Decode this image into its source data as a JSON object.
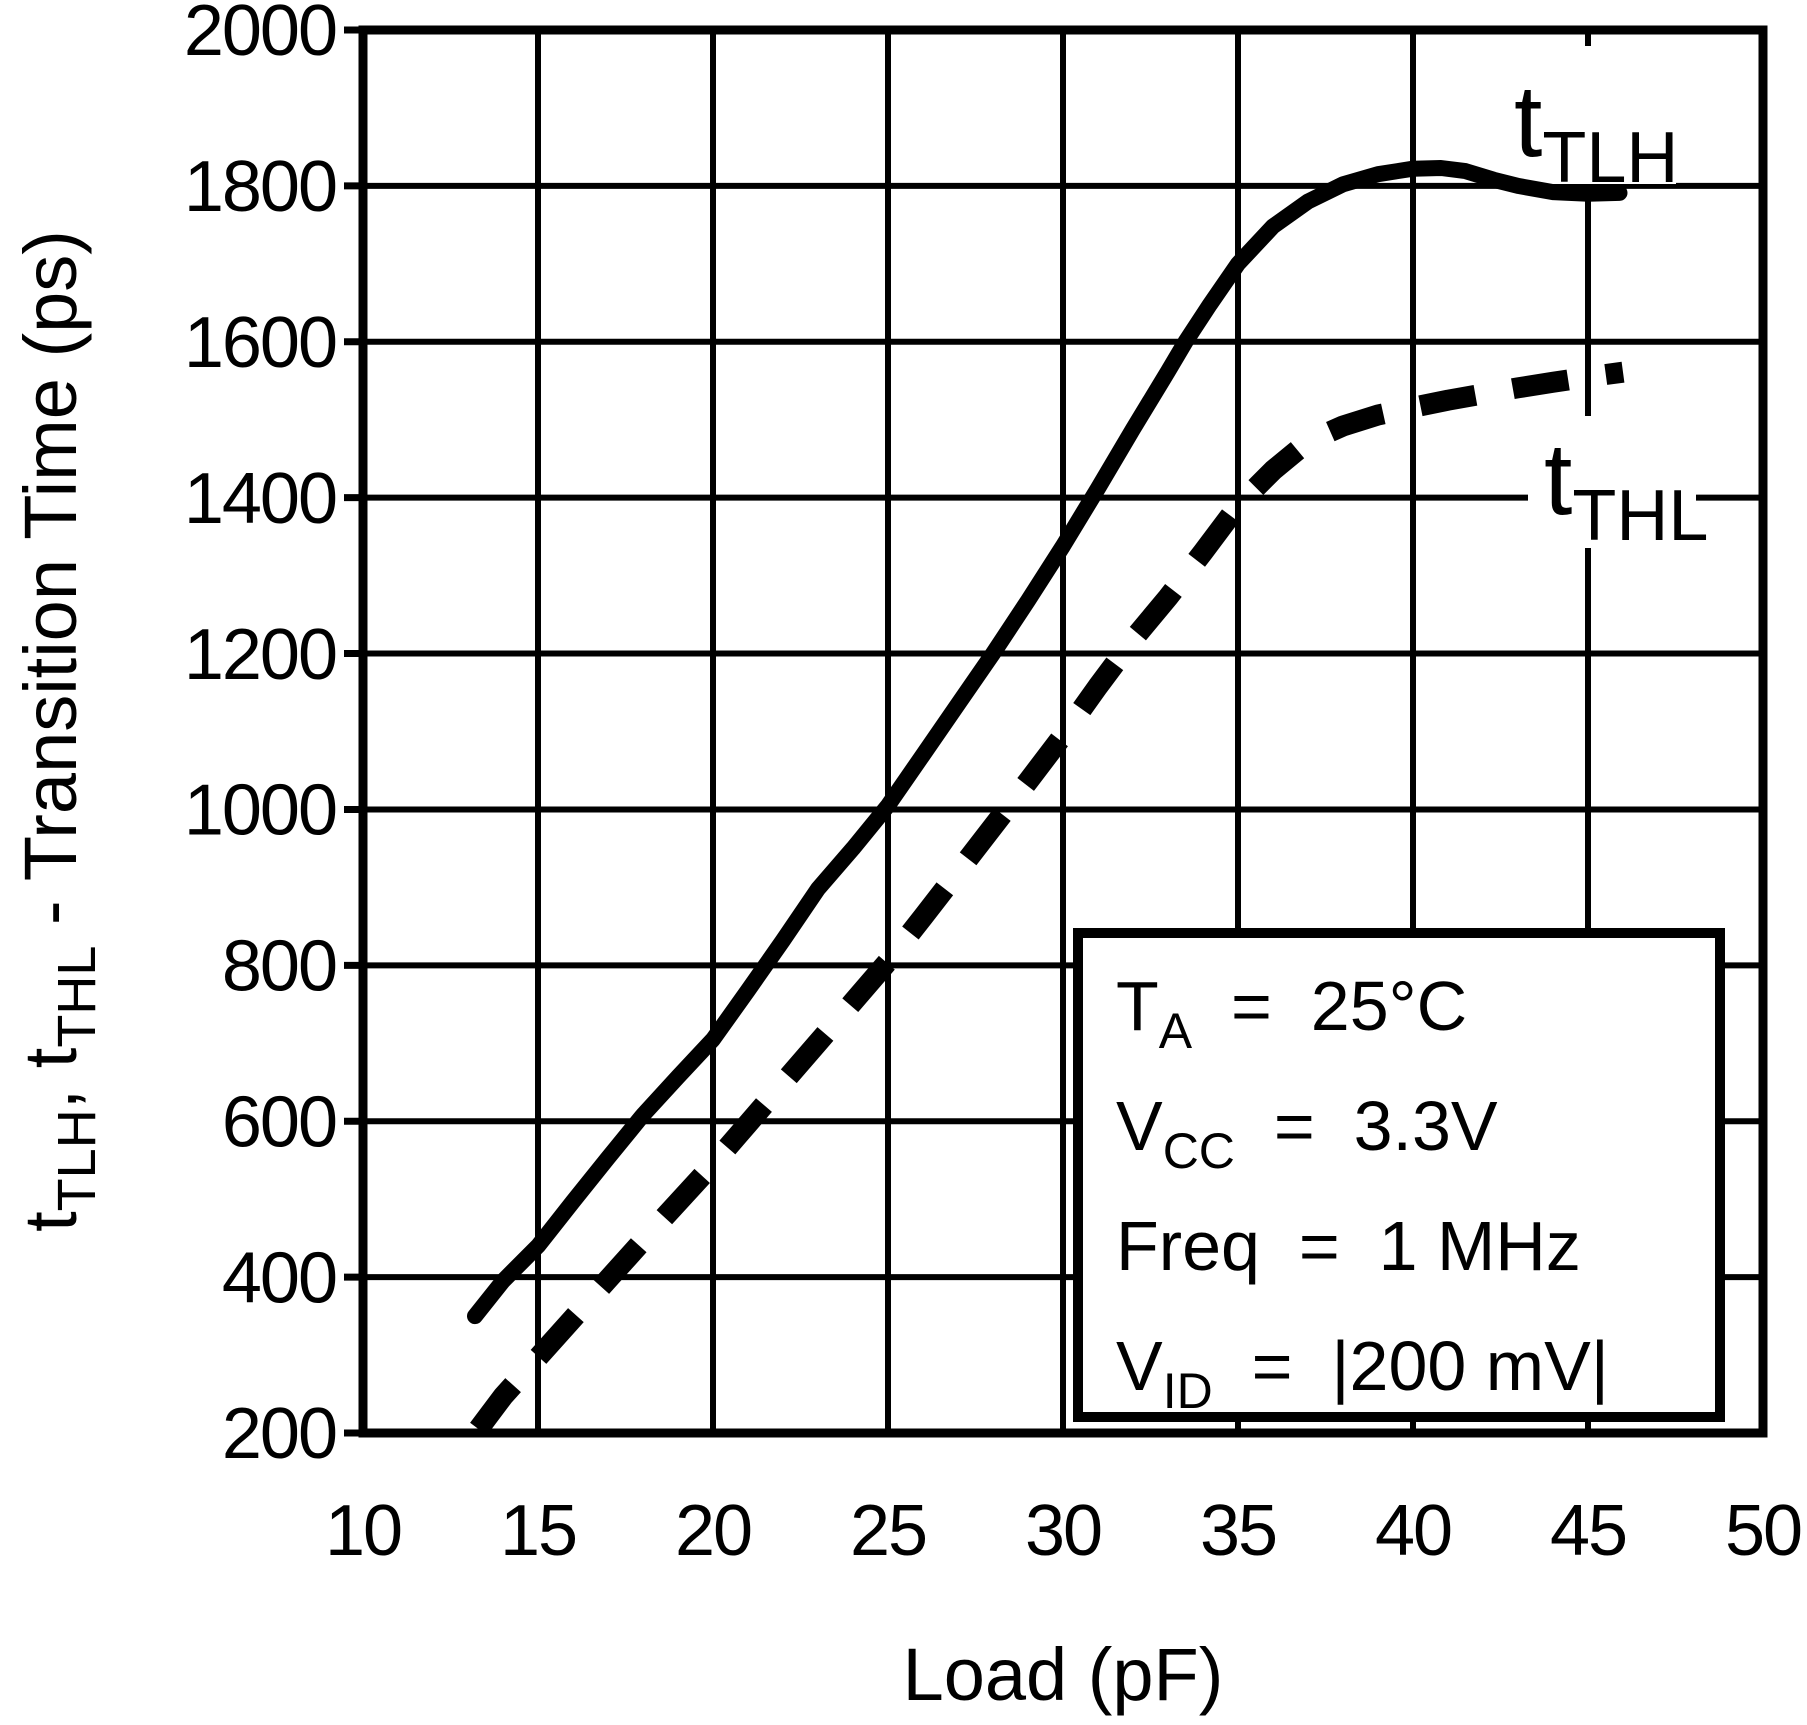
{
  "colors": {
    "ink": "#000000",
    "background": "#ffffff"
  },
  "chart_data": {
    "type": "line",
    "title": "",
    "xlabel": "Load (pF)",
    "ylabel_rich": [
      [
        "t",
        0
      ],
      [
        "TLH",
        1
      ],
      [
        ", ",
        0
      ],
      [
        "t",
        0
      ],
      [
        "THL",
        1
      ],
      [
        " - Transition Time (ps)",
        0
      ]
    ],
    "xlim": [
      10,
      50
    ],
    "xstep": 5,
    "ylim": [
      200,
      2000
    ],
    "ystep": 200,
    "x_tick_labels": [
      "10",
      "15",
      "20",
      "25",
      "30",
      "35",
      "40",
      "45",
      "50"
    ],
    "y_tick_labels": [
      "200",
      "400",
      "600",
      "800",
      "1000",
      "1200",
      "1400",
      "1600",
      "1800",
      "2000"
    ],
    "grid": true,
    "legend_position": "on-curve",
    "series": [
      {
        "name": "t_TLH",
        "style": "solid",
        "label_rich": [
          [
            "t",
            0
          ],
          [
            "TLH",
            1
          ]
        ],
        "points": [
          [
            13.2,
            350
          ],
          [
            14,
            395
          ],
          [
            15,
            440
          ],
          [
            16,
            497
          ],
          [
            17,
            553
          ],
          [
            18,
            608
          ],
          [
            19,
            657
          ],
          [
            20,
            705
          ],
          [
            21,
            768
          ],
          [
            22,
            832
          ],
          [
            23,
            898
          ],
          [
            24,
            950
          ],
          [
            25,
            1005
          ],
          [
            26,
            1070
          ],
          [
            27,
            1135
          ],
          [
            28,
            1200
          ],
          [
            29,
            1268
          ],
          [
            30,
            1338
          ],
          [
            31,
            1412
          ],
          [
            32,
            1488
          ],
          [
            33,
            1562
          ],
          [
            33.5,
            1600
          ],
          [
            34.2,
            1648
          ],
          [
            35,
            1700
          ],
          [
            36,
            1748
          ],
          [
            37,
            1780
          ],
          [
            38,
            1802
          ],
          [
            39,
            1815
          ],
          [
            40,
            1822
          ],
          [
            40.8,
            1823
          ],
          [
            41.5,
            1819
          ],
          [
            42.3,
            1808
          ],
          [
            43,
            1800
          ],
          [
            44,
            1792
          ],
          [
            45,
            1790
          ],
          [
            45.9,
            1791
          ]
        ]
      },
      {
        "name": "t_THL",
        "style": "dashed",
        "label_rich": [
          [
            "t",
            0
          ],
          [
            "THL",
            1
          ]
        ],
        "points": [
          [
            13.3,
            205
          ],
          [
            14,
            247
          ],
          [
            15,
            297
          ],
          [
            16,
            347
          ],
          [
            17,
            397
          ],
          [
            18,
            447
          ],
          [
            19,
            496
          ],
          [
            20,
            545
          ],
          [
            21,
            597
          ],
          [
            22,
            649
          ],
          [
            23,
            701
          ],
          [
            24,
            753
          ],
          [
            25,
            805
          ],
          [
            26,
            862
          ],
          [
            27,
            920
          ],
          [
            28,
            978
          ],
          [
            29,
            1036
          ],
          [
            30,
            1095
          ],
          [
            31,
            1158
          ],
          [
            32,
            1218
          ],
          [
            33,
            1272
          ],
          [
            34,
            1330
          ],
          [
            35,
            1390
          ],
          [
            36,
            1435
          ],
          [
            37,
            1472
          ],
          [
            38,
            1492
          ],
          [
            39,
            1506
          ],
          [
            40,
            1516
          ],
          [
            41,
            1525
          ],
          [
            42,
            1533
          ],
          [
            43,
            1541
          ],
          [
            44,
            1548
          ],
          [
            45,
            1555
          ],
          [
            46,
            1561
          ]
        ]
      }
    ],
    "annotation_lines_rich": [
      [
        [
          "T",
          0
        ],
        [
          "A",
          1
        ],
        [
          "  =  25°C",
          0
        ]
      ],
      [
        [
          "V",
          0
        ],
        [
          "CC",
          1
        ],
        [
          "  =  3.3V",
          0
        ]
      ],
      [
        [
          "Freq  =  1 MHz",
          0
        ]
      ],
      [
        [
          "V",
          0
        ],
        [
          "ID",
          1
        ],
        [
          "  =  |200 mV|",
          0
        ]
      ]
    ]
  }
}
